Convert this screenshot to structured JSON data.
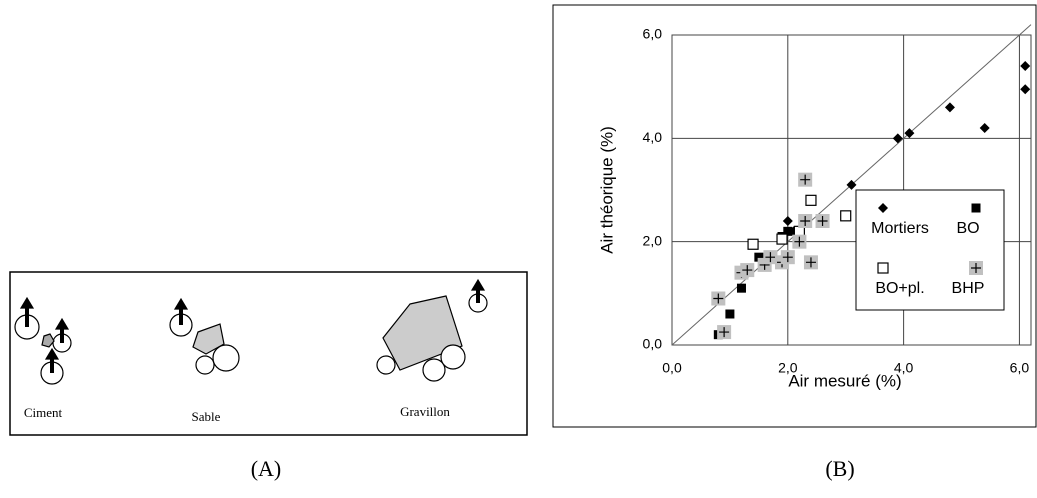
{
  "panel_a": {
    "labels": [
      "Ciment",
      "Sable",
      "Gravillon"
    ]
  },
  "captions": [
    "(A)",
    "(B)"
  ],
  "chart_data": {
    "type": "scatter",
    "xlabel": "Air mesuré (%)",
    "ylabel": "Air théorique (%)",
    "xlim": [
      0,
      6.2
    ],
    "ylim": [
      0,
      6
    ],
    "xticks": [
      {
        "value": 0,
        "label": "0,0"
      },
      {
        "value": 2,
        "label": "2,0"
      },
      {
        "value": 4,
        "label": "4,0"
      },
      {
        "value": 6,
        "label": "6,0"
      }
    ],
    "yticks": [
      {
        "value": 0,
        "label": "0,0"
      },
      {
        "value": 2,
        "label": "2,0"
      },
      {
        "value": 4,
        "label": "4,0"
      },
      {
        "value": 6,
        "label": "6,0"
      }
    ],
    "grid": true,
    "legend": "lower right",
    "series": [
      {
        "name": "Mortiers",
        "marker": "diamond",
        "color": "#000000",
        "x": [
          6.1,
          6.1,
          4.8,
          5.4,
          3.9,
          4.1,
          3.1,
          2.0,
          2.1
        ],
        "values": [
          5.4,
          4.95,
          4.6,
          4.2,
          4.0,
          4.1,
          3.1,
          2.4,
          2.2
        ]
      },
      {
        "name": "BO",
        "marker": "square",
        "color": "#000000",
        "x": [
          0.8,
          1.0,
          1.2,
          1.5,
          2.0,
          1.9
        ],
        "values": [
          0.2,
          0.6,
          1.1,
          1.7,
          2.2,
          2.1
        ]
      },
      {
        "name": "BO+pl.",
        "marker": "open-square",
        "color": "#ffffff",
        "x": [
          1.4,
          1.9,
          2.4,
          3.0,
          3.7,
          2.2
        ],
        "values": [
          1.95,
          2.05,
          2.8,
          2.5,
          2.8,
          2.2
        ]
      },
      {
        "name": "BHP",
        "marker": "plus-square",
        "color": "#c0c0c0",
        "x": [
          0.8,
          0.9,
          1.2,
          1.3,
          1.6,
          1.7,
          1.9,
          2.0,
          2.2,
          2.3,
          2.3,
          2.4,
          2.6
        ],
        "values": [
          0.9,
          0.25,
          1.4,
          1.45,
          1.55,
          1.7,
          1.6,
          1.7,
          2.0,
          2.4,
          3.2,
          1.6,
          2.4
        ]
      }
    ]
  }
}
